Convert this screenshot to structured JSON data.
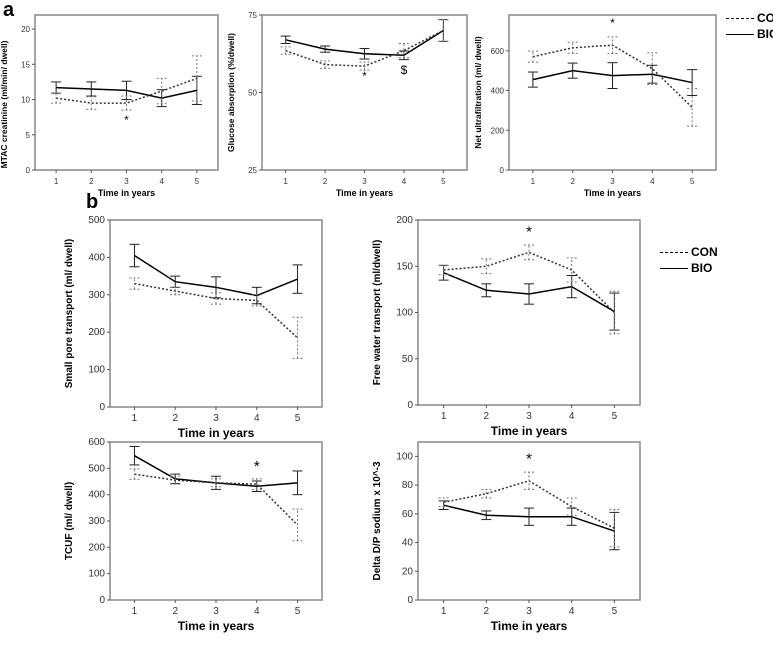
{
  "panels": {
    "a": "a",
    "b": "b"
  },
  "legend": {
    "con": "CON",
    "bio": "BIO"
  },
  "chart_data": [
    {
      "type": "line",
      "title": "",
      "xlabel": "Time in years",
      "ylabel": "MTAC creatinine (ml/min/ dwell)",
      "x": [
        1,
        2,
        3,
        4,
        5
      ],
      "ylim": [
        0,
        22
      ],
      "yticks": [
        0,
        5,
        10,
        15,
        20
      ],
      "series": [
        {
          "name": "BIO",
          "values": [
            11.7,
            11.5,
            11.3,
            10.2,
            11.3
          ],
          "err": [
            0.8,
            1.0,
            1.3,
            1.2,
            2.0
          ]
        },
        {
          "name": "CON",
          "values": [
            10.2,
            9.5,
            9.5,
            11.2,
            13.0
          ],
          "err": [
            0.7,
            0.9,
            1.0,
            1.8,
            3.2
          ]
        }
      ],
      "annotations": [
        {
          "text": "*",
          "x": 3,
          "y": 6.5
        }
      ]
    },
    {
      "type": "line",
      "xlabel": "Time in years",
      "ylabel": "Glucose absorption (%/dwell)",
      "x": [
        1,
        2,
        3,
        4,
        5
      ],
      "ylim": [
        25,
        75
      ],
      "yticks": [
        25,
        50,
        75
      ],
      "series": [
        {
          "name": "BIO",
          "values": [
            67,
            64,
            62.5,
            62,
            70
          ],
          "err": [
            1.2,
            1.0,
            1.7,
            1.4,
            3.5
          ]
        },
        {
          "name": "CON",
          "values": [
            63.5,
            59,
            58.5,
            63.5,
            70
          ],
          "err": [
            1.2,
            1.2,
            1.3,
            2.3,
            3.5
          ]
        }
      ],
      "annotations": [
        {
          "text": "*",
          "x": 3,
          "y": 54
        },
        {
          "text": "$",
          "x": 4,
          "y": 56
        }
      ]
    },
    {
      "type": "line",
      "xlabel": "Time in years",
      "ylabel": "Net ultrafiltration (ml/ dwell)",
      "x": [
        1,
        2,
        3,
        4,
        5
      ],
      "ylim": [
        0,
        780
      ],
      "yticks": [
        0,
        200,
        400,
        600
      ],
      "series": [
        {
          "name": "BIO",
          "values": [
            455,
            500,
            475,
            482,
            440
          ],
          "err": [
            38,
            38,
            65,
            45,
            65
          ]
        },
        {
          "name": "CON",
          "values": [
            570,
            615,
            628,
            510,
            315
          ],
          "err": [
            28,
            28,
            42,
            80,
            95
          ]
        }
      ],
      "annotations": [
        {
          "text": "*",
          "x": 3,
          "y": 720
        }
      ]
    },
    {
      "type": "line",
      "xlabel": "Time in years",
      "ylabel": "Small pore transport  (ml/ dwell)",
      "x": [
        1,
        2,
        3,
        4,
        5
      ],
      "ylim": [
        0,
        500
      ],
      "yticks": [
        0,
        100,
        200,
        300,
        400,
        500
      ],
      "series": [
        {
          "name": "BIO",
          "values": [
            405,
            335,
            320,
            298,
            342
          ],
          "err": [
            30,
            15,
            28,
            22,
            38
          ]
        },
        {
          "name": "CON",
          "values": [
            330,
            310,
            290,
            285,
            185
          ],
          "err": [
            15,
            10,
            15,
            15,
            55
          ]
        }
      ],
      "annotations": []
    },
    {
      "type": "line",
      "xlabel": "Time in years",
      "ylabel": "Free water transport  (ml/dwell)",
      "x": [
        1,
        2,
        3,
        4,
        5
      ],
      "ylim": [
        0,
        200
      ],
      "yticks": [
        0,
        50,
        100,
        150,
        200
      ],
      "series": [
        {
          "name": "BIO",
          "values": [
            143,
            124,
            120,
            128,
            101
          ],
          "err": [
            8,
            7,
            11,
            12,
            20
          ]
        },
        {
          "name": "CON",
          "values": [
            146,
            150,
            165,
            146,
            100
          ],
          "err": [
            5,
            8,
            8,
            13,
            23
          ]
        }
      ],
      "annotations": [
        {
          "text": "*",
          "x": 3,
          "y": 182
        }
      ]
    },
    {
      "type": "line",
      "xlabel": "Time in years",
      "ylabel": "TCUF  (ml/ dwell)",
      "x": [
        1,
        2,
        3,
        4,
        5
      ],
      "ylim": [
        0,
        600
      ],
      "yticks": [
        0,
        100,
        200,
        300,
        400,
        500,
        600
      ],
      "series": [
        {
          "name": "BIO",
          "values": [
            548,
            460,
            445,
            432,
            445
          ],
          "err": [
            35,
            18,
            25,
            20,
            45
          ]
        },
        {
          "name": "CON",
          "values": [
            478,
            455,
            445,
            440,
            285
          ],
          "err": [
            20,
            15,
            15,
            20,
            60
          ]
        }
      ],
      "annotations": [
        {
          "text": "*",
          "x": 4,
          "y": 490
        }
      ]
    },
    {
      "type": "line",
      "xlabel": "Time in years",
      "ylabel": "Delta D/P sodium x 10^-3",
      "x": [
        1,
        2,
        3,
        4,
        5
      ],
      "ylim": [
        0,
        110
      ],
      "yticks": [
        0,
        20,
        40,
        60,
        80,
        100
      ],
      "series": [
        {
          "name": "BIO",
          "values": [
            66,
            59,
            58,
            58,
            48
          ],
          "err": [
            3,
            3,
            6,
            6,
            13
          ]
        },
        {
          "name": "CON",
          "values": [
            68,
            74,
            83,
            65,
            50
          ],
          "err": [
            3,
            3,
            6,
            6,
            13
          ]
        }
      ],
      "annotations": [
        {
          "text": "*",
          "x": 3,
          "y": 95
        }
      ]
    }
  ]
}
